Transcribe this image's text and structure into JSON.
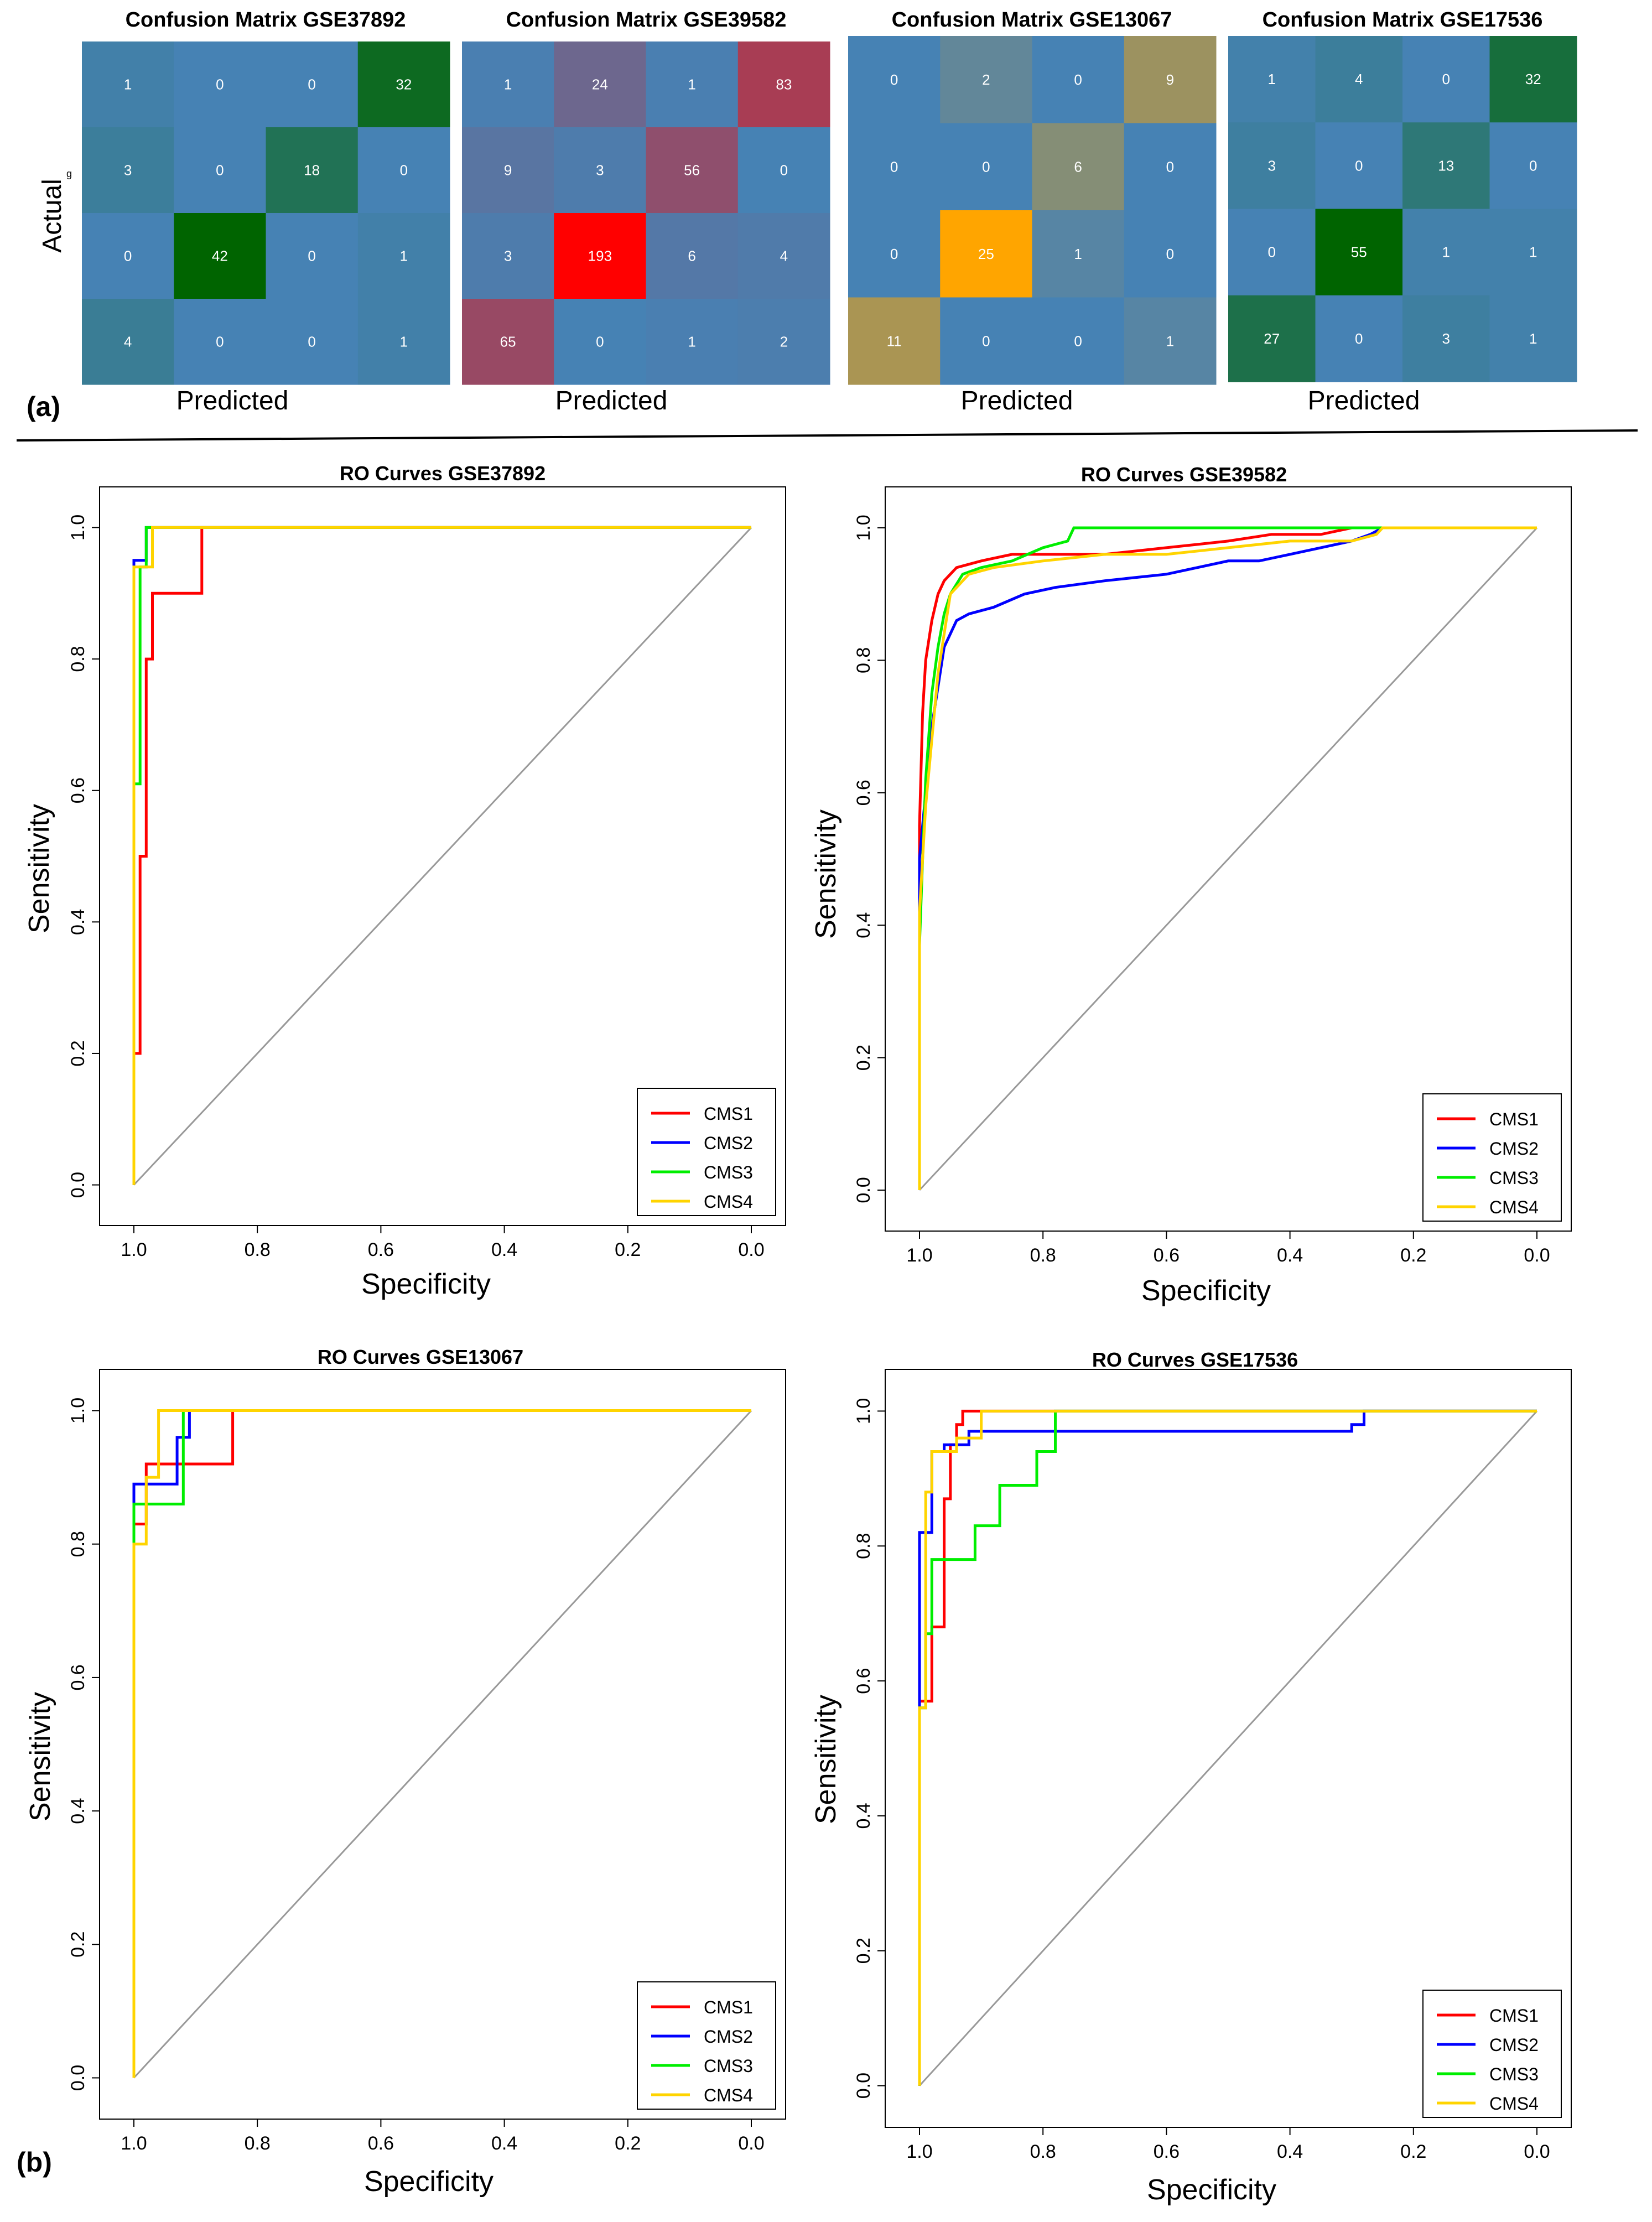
{
  "panel_labels": {
    "a": "(a)",
    "b": "(b)"
  },
  "colors": {
    "base": "#4682b4",
    "cms1": "#ff0000",
    "cms2": "#0000ff",
    "cms3": "#00ee00",
    "cms4": "#ffd400",
    "diagonal": "#999999"
  },
  "chart_data": [
    {
      "type": "heatmap",
      "title": "Confusion Matrix GSE37892",
      "xlabel": "Predicted",
      "ylabel": "Actual",
      "ylabel_suffix": "g",
      "values": [
        [
          1,
          0,
          0,
          32
        ],
        [
          3,
          0,
          18,
          0
        ],
        [
          0,
          42,
          0,
          1
        ],
        [
          4,
          0,
          0,
          1
        ]
      ],
      "hot_color": "#006400"
    },
    {
      "type": "heatmap",
      "title": "Confusion Matrix GSE39582",
      "xlabel": "Predicted",
      "ylabel": "",
      "values": [
        [
          1,
          24,
          1,
          83
        ],
        [
          9,
          3,
          56,
          0
        ],
        [
          3,
          193,
          6,
          4
        ],
        [
          65,
          0,
          1,
          2
        ]
      ],
      "hot_color": "#ff0000"
    },
    {
      "type": "heatmap",
      "title": "Confusion Matrix GSE13067",
      "xlabel": "Predicted",
      "ylabel": "",
      "values": [
        [
          0,
          2,
          0,
          9
        ],
        [
          0,
          0,
          6,
          0
        ],
        [
          0,
          25,
          1,
          0
        ],
        [
          11,
          0,
          0,
          1
        ]
      ],
      "hot_color": "#ffa500"
    },
    {
      "type": "heatmap",
      "title": "Confusion Matrix GSE17536",
      "xlabel": "Predicted",
      "ylabel": "",
      "values": [
        [
          1,
          4,
          0,
          32
        ],
        [
          3,
          0,
          13,
          0
        ],
        [
          0,
          55,
          1,
          1
        ],
        [
          27,
          0,
          3,
          1
        ]
      ],
      "hot_color": "#006400"
    },
    {
      "type": "line",
      "title": "RO Curves GSE37892",
      "xlabel": "Specificity",
      "ylabel": "Sensitivity",
      "xlim": [
        1.0,
        0.0
      ],
      "ylim": [
        0.0,
        1.0
      ],
      "ticks": [
        "0.0",
        "0.2",
        "0.4",
        "0.6",
        "0.8",
        "1.0"
      ],
      "legend_position": "bottom-right",
      "series": [
        {
          "name": "CMS1",
          "color": "#ff0000",
          "points": [
            [
              1,
              0
            ],
            [
              1,
              0.2
            ],
            [
              0.99,
              0.2
            ],
            [
              0.99,
              0.5
            ],
            [
              0.98,
              0.5
            ],
            [
              0.98,
              0.8
            ],
            [
              0.97,
              0.8
            ],
            [
              0.97,
              0.9
            ],
            [
              0.89,
              0.9
            ],
            [
              0.89,
              1
            ],
            [
              0,
              1
            ]
          ]
        },
        {
          "name": "CMS2",
          "color": "#0000ff",
          "points": [
            [
              1,
              0
            ],
            [
              1,
              0.95
            ],
            [
              0.98,
              0.95
            ],
            [
              0.98,
              1
            ],
            [
              0,
              1
            ]
          ]
        },
        {
          "name": "CMS3",
          "color": "#00ee00",
          "points": [
            [
              1,
              0
            ],
            [
              1,
              0.61
            ],
            [
              0.99,
              0.61
            ],
            [
              0.99,
              0.94
            ],
            [
              0.98,
              0.94
            ],
            [
              0.98,
              1
            ],
            [
              0,
              1
            ]
          ]
        },
        {
          "name": "CMS4",
          "color": "#ffd400",
          "points": [
            [
              1,
              0
            ],
            [
              1,
              0.94
            ],
            [
              0.97,
              0.94
            ],
            [
              0.97,
              1
            ],
            [
              0,
              1
            ]
          ]
        }
      ]
    },
    {
      "type": "line",
      "title": "RO Curves GSE39582",
      "xlabel": "Specificity",
      "ylabel": "Sensitivity",
      "xlim": [
        1.0,
        0.0
      ],
      "ylim": [
        0.0,
        1.0
      ],
      "ticks": [
        "0.0",
        "0.2",
        "0.4",
        "0.6",
        "0.8",
        "1.0"
      ],
      "legend_position": "bottom-right",
      "series": [
        {
          "name": "CMS1",
          "color": "#ff0000",
          "points": [
            [
              1,
              0
            ],
            [
              1,
              0.55
            ],
            [
              0.995,
              0.72
            ],
            [
              0.99,
              0.8
            ],
            [
              0.98,
              0.86
            ],
            [
              0.97,
              0.9
            ],
            [
              0.96,
              0.92
            ],
            [
              0.94,
              0.94
            ],
            [
              0.9,
              0.95
            ],
            [
              0.85,
              0.96
            ],
            [
              0.7,
              0.96
            ],
            [
              0.6,
              0.97
            ],
            [
              0.5,
              0.98
            ],
            [
              0.43,
              0.99
            ],
            [
              0.35,
              0.99
            ],
            [
              0.3,
              1
            ],
            [
              0,
              1
            ]
          ]
        },
        {
          "name": "CMS2",
          "color": "#0000ff",
          "points": [
            [
              1,
              0
            ],
            [
              1,
              0.5
            ],
            [
              0.99,
              0.6
            ],
            [
              0.98,
              0.7
            ],
            [
              0.97,
              0.76
            ],
            [
              0.96,
              0.82
            ],
            [
              0.94,
              0.86
            ],
            [
              0.92,
              0.87
            ],
            [
              0.88,
              0.88
            ],
            [
              0.83,
              0.9
            ],
            [
              0.78,
              0.91
            ],
            [
              0.7,
              0.92
            ],
            [
              0.6,
              0.93
            ],
            [
              0.55,
              0.94
            ],
            [
              0.5,
              0.95
            ],
            [
              0.45,
              0.95
            ],
            [
              0.4,
              0.96
            ],
            [
              0.35,
              0.97
            ],
            [
              0.3,
              0.98
            ],
            [
              0.27,
              0.99
            ],
            [
              0.25,
              1
            ],
            [
              0,
              1
            ]
          ]
        },
        {
          "name": "CMS3",
          "color": "#00ee00",
          "points": [
            [
              1,
              0
            ],
            [
              1,
              0.37
            ],
            [
              0.995,
              0.5
            ],
            [
              0.99,
              0.62
            ],
            [
              0.98,
              0.75
            ],
            [
              0.97,
              0.82
            ],
            [
              0.96,
              0.87
            ],
            [
              0.95,
              0.9
            ],
            [
              0.93,
              0.93
            ],
            [
              0.9,
              0.94
            ],
            [
              0.85,
              0.95
            ],
            [
              0.8,
              0.97
            ],
            [
              0.76,
              0.98
            ],
            [
              0.75,
              1
            ],
            [
              0.3,
              1
            ],
            [
              0,
              1
            ]
          ]
        },
        {
          "name": "CMS4",
          "color": "#ffd400",
          "points": [
            [
              1,
              0
            ],
            [
              1,
              0.42
            ],
            [
              0.99,
              0.58
            ],
            [
              0.98,
              0.68
            ],
            [
              0.97,
              0.78
            ],
            [
              0.96,
              0.84
            ],
            [
              0.95,
              0.9
            ],
            [
              0.92,
              0.93
            ],
            [
              0.88,
              0.94
            ],
            [
              0.8,
              0.95
            ],
            [
              0.7,
              0.96
            ],
            [
              0.6,
              0.96
            ],
            [
              0.5,
              0.97
            ],
            [
              0.4,
              0.98
            ],
            [
              0.3,
              0.98
            ],
            [
              0.26,
              0.99
            ],
            [
              0.25,
              1
            ],
            [
              0,
              1
            ]
          ]
        }
      ]
    },
    {
      "type": "line",
      "title": "RO Curves GSE13067",
      "xlabel": "Specificity",
      "ylabel": "Sensitivity",
      "xlim": [
        1.0,
        0.0
      ],
      "ylim": [
        0.0,
        1.0
      ],
      "ticks": [
        "0.0",
        "0.2",
        "0.4",
        "0.6",
        "0.8",
        "1.0"
      ],
      "legend_position": "bottom-right",
      "series": [
        {
          "name": "CMS1",
          "color": "#ff0000",
          "points": [
            [
              1,
              0
            ],
            [
              1,
              0.83
            ],
            [
              0.98,
              0.83
            ],
            [
              0.98,
              0.92
            ],
            [
              0.84,
              0.92
            ],
            [
              0.84,
              1
            ],
            [
              0,
              1
            ]
          ]
        },
        {
          "name": "CMS2",
          "color": "#0000ff",
          "points": [
            [
              1,
              0
            ],
            [
              1,
              0.89
            ],
            [
              0.93,
              0.89
            ],
            [
              0.93,
              0.96
            ],
            [
              0.91,
              0.96
            ],
            [
              0.91,
              1
            ],
            [
              0,
              1
            ]
          ]
        },
        {
          "name": "CMS3",
          "color": "#00ee00",
          "points": [
            [
              1,
              0
            ],
            [
              1,
              0.86
            ],
            [
              0.92,
              0.86
            ],
            [
              0.92,
              1
            ],
            [
              0,
              1
            ]
          ]
        },
        {
          "name": "CMS4",
          "color": "#ffd400",
          "points": [
            [
              1,
              0
            ],
            [
              1,
              0.8
            ],
            [
              0.98,
              0.8
            ],
            [
              0.98,
              0.9
            ],
            [
              0.96,
              0.9
            ],
            [
              0.96,
              1
            ],
            [
              0,
              1
            ]
          ]
        }
      ]
    },
    {
      "type": "line",
      "title": "RO Curves GSE17536",
      "xlabel": "Specificity",
      "ylabel": "Sensitivity",
      "xlim": [
        1.0,
        0.0
      ],
      "ylim": [
        0.0,
        1.0
      ],
      "ticks": [
        "0.0",
        "0.2",
        "0.4",
        "0.6",
        "0.8",
        "1.0"
      ],
      "legend_position": "bottom-right",
      "series": [
        {
          "name": "CMS1",
          "color": "#ff0000",
          "points": [
            [
              1,
              0
            ],
            [
              1,
              0.57
            ],
            [
              0.98,
              0.57
            ],
            [
              0.98,
              0.68
            ],
            [
              0.96,
              0.68
            ],
            [
              0.96,
              0.87
            ],
            [
              0.95,
              0.87
            ],
            [
              0.95,
              0.95
            ],
            [
              0.94,
              0.95
            ],
            [
              0.94,
              0.98
            ],
            [
              0.93,
              0.98
            ],
            [
              0.93,
              1
            ],
            [
              0,
              1
            ]
          ]
        },
        {
          "name": "CMS2",
          "color": "#0000ff",
          "points": [
            [
              1,
              0
            ],
            [
              1,
              0.82
            ],
            [
              0.98,
              0.82
            ],
            [
              0.98,
              0.94
            ],
            [
              0.96,
              0.94
            ],
            [
              0.96,
              0.95
            ],
            [
              0.92,
              0.95
            ],
            [
              0.92,
              0.97
            ],
            [
              0.3,
              0.97
            ],
            [
              0.3,
              0.98
            ],
            [
              0.28,
              0.98
            ],
            [
              0.28,
              1
            ],
            [
              0,
              1
            ]
          ]
        },
        {
          "name": "CMS3",
          "color": "#00ee00",
          "points": [
            [
              1,
              0
            ],
            [
              1,
              0.56
            ],
            [
              0.99,
              0.56
            ],
            [
              0.99,
              0.67
            ],
            [
              0.98,
              0.67
            ],
            [
              0.98,
              0.78
            ],
            [
              0.91,
              0.78
            ],
            [
              0.91,
              0.83
            ],
            [
              0.87,
              0.83
            ],
            [
              0.87,
              0.89
            ],
            [
              0.81,
              0.89
            ],
            [
              0.81,
              0.94
            ],
            [
              0.78,
              0.94
            ],
            [
              0.78,
              1
            ],
            [
              0,
              1
            ]
          ]
        },
        {
          "name": "CMS4",
          "color": "#ffd400",
          "points": [
            [
              1,
              0
            ],
            [
              1,
              0.56
            ],
            [
              0.99,
              0.56
            ],
            [
              0.99,
              0.88
            ],
            [
              0.98,
              0.88
            ],
            [
              0.98,
              0.94
            ],
            [
              0.94,
              0.94
            ],
            [
              0.94,
              0.96
            ],
            [
              0.9,
              0.96
            ],
            [
              0.9,
              1
            ],
            [
              0,
              1
            ]
          ]
        }
      ]
    }
  ]
}
